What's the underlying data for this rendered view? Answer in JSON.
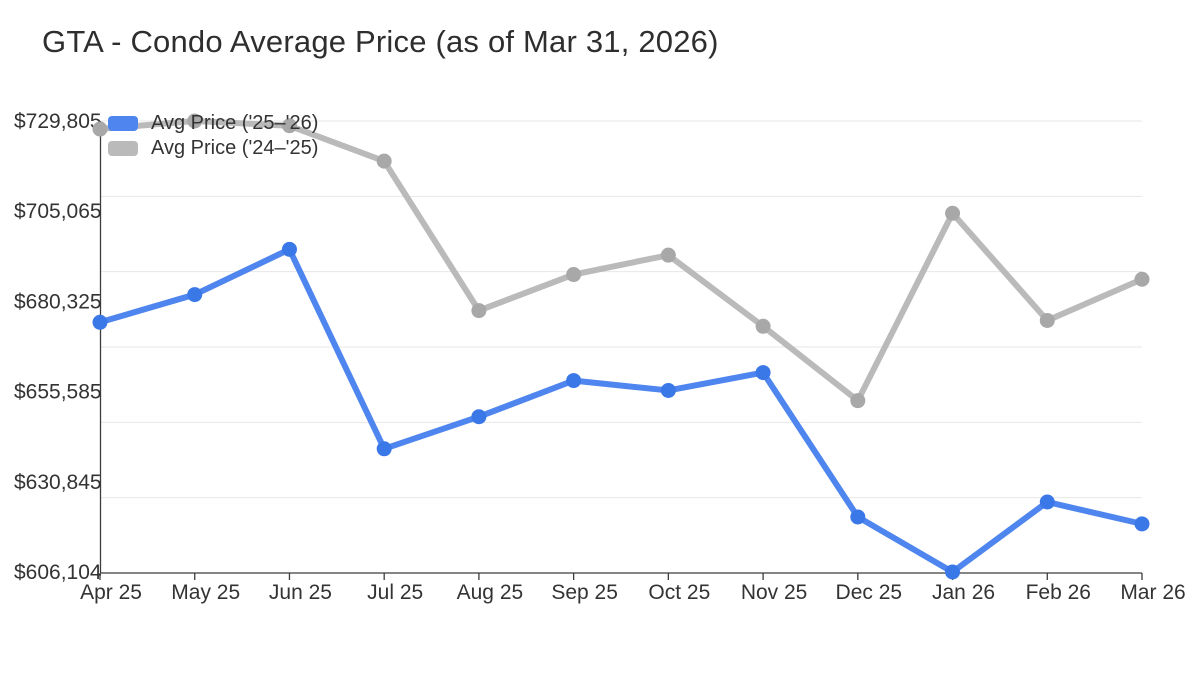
{
  "title": "GTA - Condo Average Price (as of Mar 31, 2026)",
  "chart_data": {
    "type": "line",
    "title": "GTA - Condo Average Price (as of Mar 31, 2026)",
    "categories": [
      "Apr 25",
      "May 25",
      "Jun 25",
      "Jul 25",
      "Aug 25",
      "Sep 25",
      "Oct 25",
      "Nov 25",
      "Dec 25",
      "Jan 26",
      "Feb 26",
      "Mar 26"
    ],
    "series": [
      {
        "name": "Avg Price ('25–'26)",
        "color": "#4f85ee",
        "dot_color": "#3b78e7",
        "values": [
          674600,
          682200,
          694600,
          639900,
          648700,
          658600,
          655900,
          660800,
          621200,
          606104,
          625300,
          619300
        ]
      },
      {
        "name": "Avg Price ('24–'25)",
        "color": "#bababa",
        "dot_color": "#a8a8a8",
        "values": [
          727600,
          729805,
          728500,
          718800,
          677800,
          687700,
          693000,
          673500,
          653100,
          704500,
          675100,
          686400
        ]
      }
    ],
    "ylim": [
      606104,
      729805
    ],
    "ytick_values": [
      729805,
      705065,
      680325,
      655585,
      630845,
      606104
    ],
    "ytick_labels": [
      "$729,805",
      "$705,065",
      "$680,325",
      "$655,585",
      "$630,845",
      "$606,104"
    ],
    "xlabel": "",
    "ylabel": "",
    "grid": true,
    "gridline_count": 7,
    "legend_position": "top-left",
    "grid_color": "#e7e7e7",
    "axis_color": "#3c3c3c",
    "text_color": "#333333"
  }
}
